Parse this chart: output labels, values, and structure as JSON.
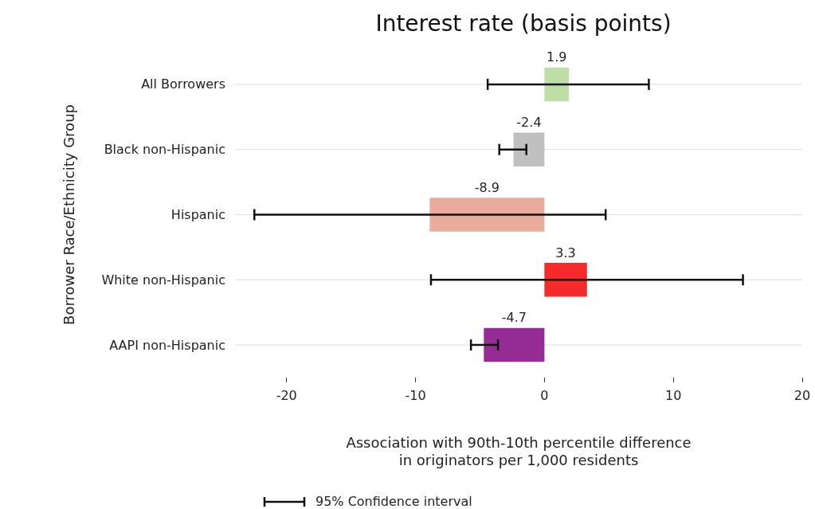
{
  "chart_data": {
    "type": "bar",
    "orientation": "horizontal",
    "title": "Interest rate (basis points)",
    "xlabel": "Association with 90th-10th percentile difference\nin originators per 1,000 residents",
    "ylabel": "Borrower Race/Ethnicity Group",
    "categories": [
      "All Borrowers",
      "Black non-Hispanic",
      "Hispanic",
      "White non-Hispanic",
      "AAPI non-Hispanic"
    ],
    "values": [
      1.9,
      -2.4,
      -8.9,
      3.3,
      -4.7
    ],
    "colors": [
      "#bddfa6",
      "#c0c0c0",
      "#e8ab9c",
      "#f52a2a",
      "#952c96"
    ],
    "errors": [
      [
        -4.4,
        8.1
      ],
      [
        -3.5,
        -1.4
      ],
      [
        -22.5,
        4.75
      ],
      [
        -8.8,
        15.4
      ],
      [
        -5.7,
        -3.6
      ]
    ],
    "data_labels": true,
    "xlim": [
      -24,
      20
    ],
    "xticks": [
      -20,
      -10,
      0,
      10,
      20
    ],
    "grid": "y",
    "annotations": [
      "95% Confidence interval"
    ]
  }
}
